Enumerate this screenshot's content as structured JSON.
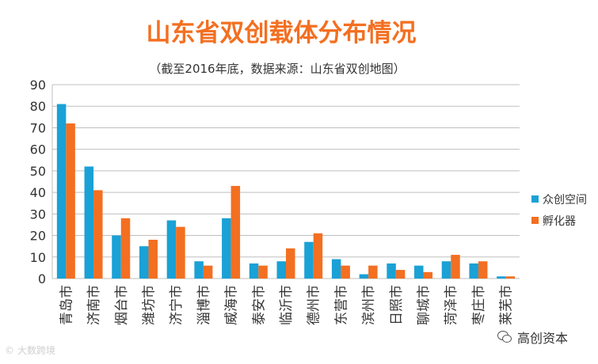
{
  "chart_data": {
    "type": "bar",
    "title": "山东省双创载体分布情况",
    "subtitle": "（截至2016年底，数据来源：山东省双创地图）",
    "xlabel": "",
    "ylabel": "",
    "ylim": [
      0,
      90
    ],
    "yticks": [
      0,
      10,
      20,
      30,
      40,
      50,
      60,
      70,
      80,
      90
    ],
    "grid": true,
    "legend_position": "right",
    "categories": [
      "青岛市",
      "济南市",
      "烟台市",
      "潍坊市",
      "济宁市",
      "淄博市",
      "威海市",
      "泰安市",
      "临沂市",
      "德州市",
      "东营市",
      "滨州市",
      "日照市",
      "聊城市",
      "菏泽市",
      "枣庄市",
      "莱芜市"
    ],
    "series": [
      {
        "name": "众创空间",
        "color": "#1aa1d6",
        "values": [
          81,
          52,
          20,
          15,
          27,
          8,
          28,
          7,
          8,
          17,
          9,
          2,
          7,
          6,
          8,
          7,
          1
        ]
      },
      {
        "name": "孵化器",
        "color": "#f36f21",
        "values": [
          72,
          41,
          28,
          18,
          24,
          6,
          43,
          6,
          14,
          21,
          6,
          6,
          4,
          3,
          11,
          8,
          1
        ]
      }
    ]
  },
  "colors": {
    "title": "#f36f21",
    "subtitle": "#333333",
    "grid": "#bfbfbf",
    "axis_text": "#333333"
  },
  "watermarks": {
    "left_text": "大数跨境",
    "right_text": "高创资本"
  }
}
